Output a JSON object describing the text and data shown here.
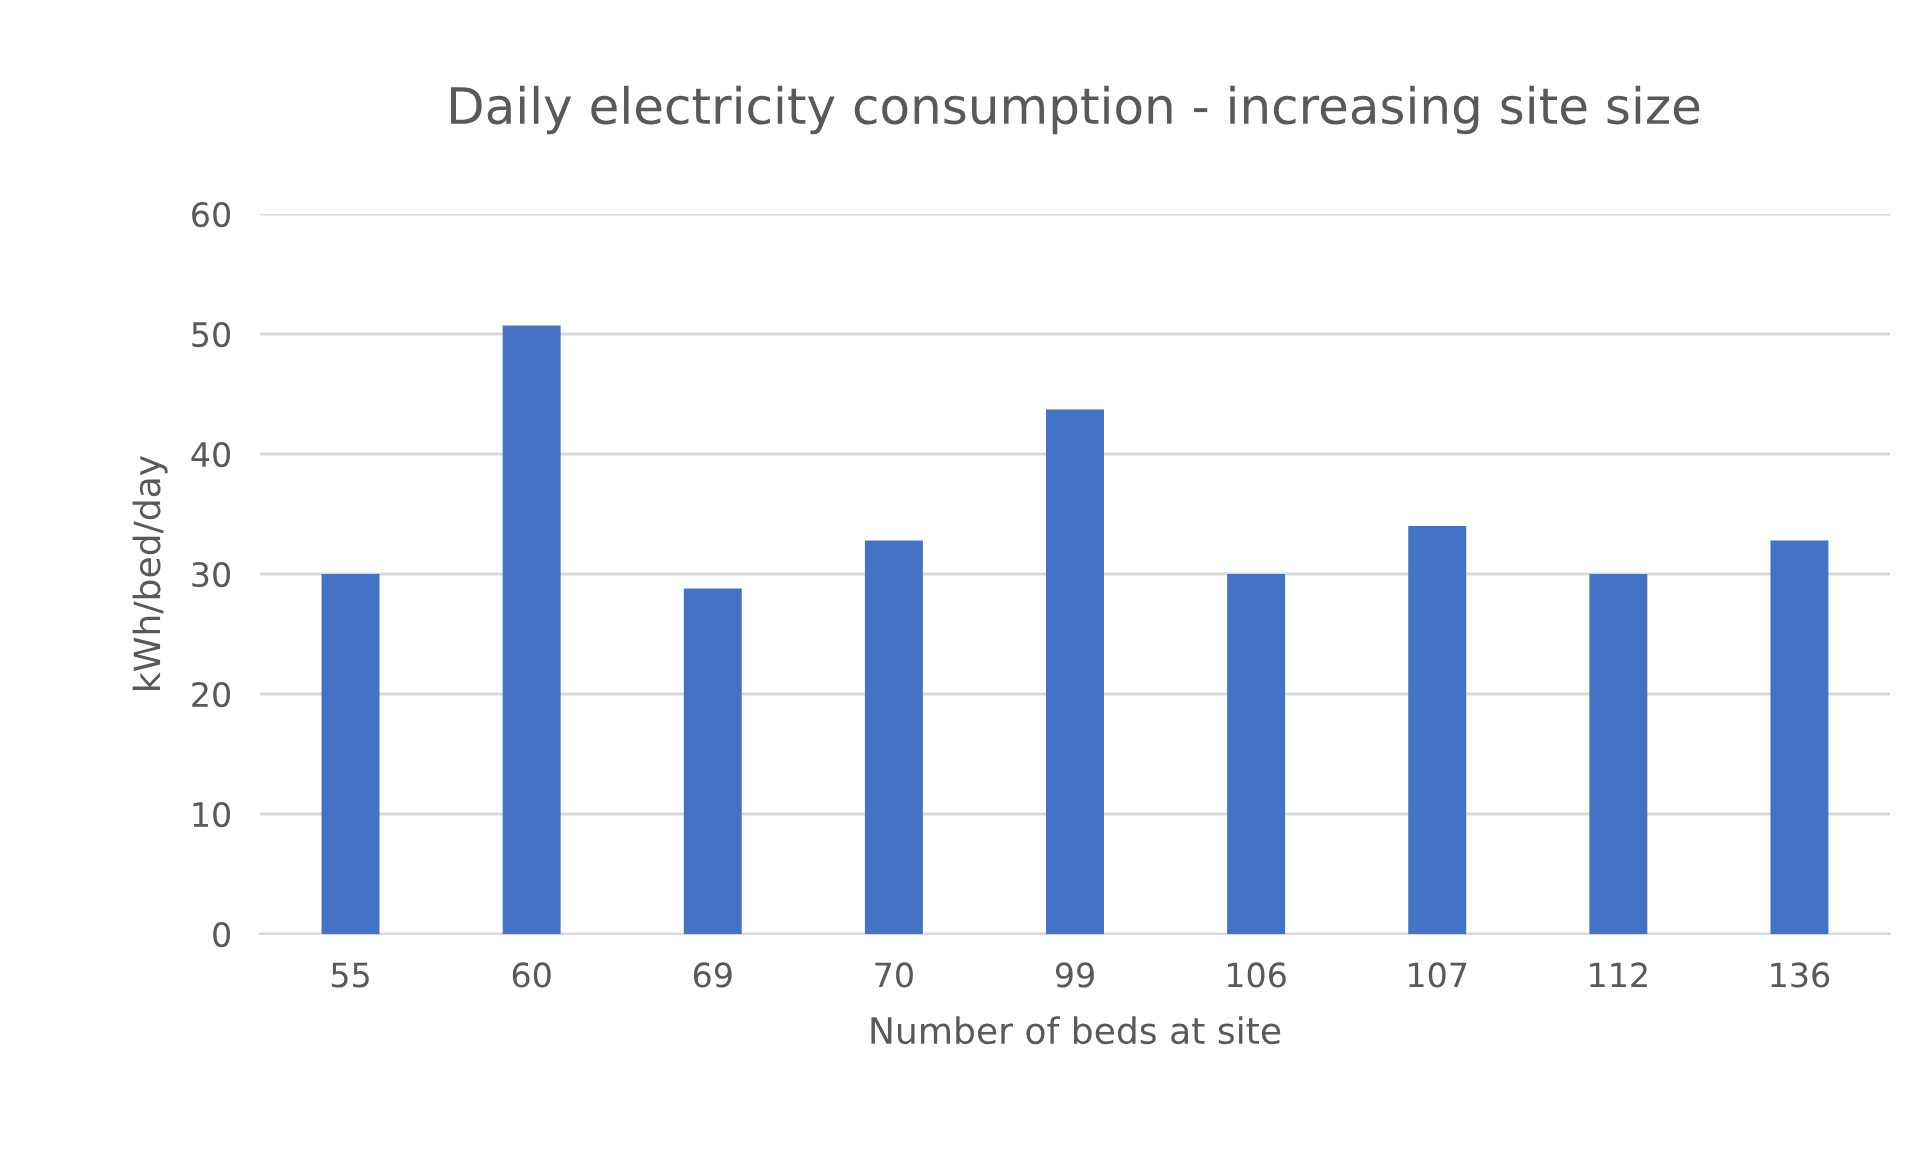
{
  "chart_data": {
    "type": "bar",
    "title": "Daily electricity consumption - increasing site size",
    "xlabel": "Number of beds at site",
    "ylabel": "kWh/bed/day",
    "categories": [
      "55",
      "60",
      "69",
      "70",
      "99",
      "106",
      "107",
      "112",
      "136"
    ],
    "values": [
      30,
      50.7,
      28.8,
      32.8,
      43.7,
      30,
      34,
      30,
      32.8
    ],
    "color": "#4472c4",
    "ylim": [
      0,
      60
    ],
    "yticks": [
      0,
      10,
      20,
      30,
      40,
      50,
      60
    ],
    "grid": "y"
  }
}
